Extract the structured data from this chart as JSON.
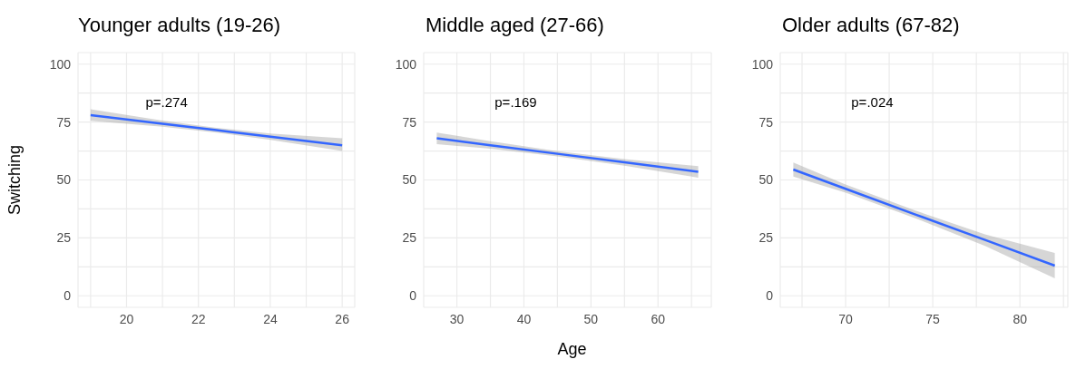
{
  "chart_data": [
    {
      "type": "line",
      "title": "Younger adults (19-26)",
      "ylabel": "Switching",
      "annotations": [
        "p=.274"
      ],
      "grid": true,
      "marker": "none",
      "series": [
        {
          "color": "#3366ff",
          "x": [
            19,
            21,
            22.5,
            24,
            26
          ],
          "values": [
            78,
            74.3,
            71.5,
            68.7,
            65
          ],
          "lower": [
            75.5,
            73,
            70.5,
            67.3,
            62.5
          ],
          "upper": [
            80.5,
            75.6,
            72.5,
            70.1,
            68
          ]
        }
      ],
      "xlim": [
        18.65,
        26.35
      ],
      "xticks": [
        {
          "value": 19,
          "label": null
        },
        20,
        {
          "value": 21,
          "label": null
        },
        22,
        {
          "value": 23,
          "label": null
        },
        24,
        {
          "value": 25,
          "label": null
        },
        26
      ],
      "ylim": [
        -5,
        105
      ],
      "yticks": [
        0,
        {
          "value": 12.5,
          "label": null
        },
        25,
        {
          "value": 37.5,
          "label": null
        },
        50,
        {
          "value": 62.5,
          "label": null
        },
        75,
        {
          "value": 87.5,
          "label": null
        },
        100
      ]
    },
    {
      "type": "line",
      "title": "Middle aged (27-66)",
      "xlabel": "Age",
      "annotations": [
        "p=.169"
      ],
      "grid": true,
      "marker": "none",
      "series": [
        {
          "color": "#3366ff",
          "x": [
            27,
            35,
            45,
            55,
            66
          ],
          "values": [
            68,
            65,
            61.3,
            57.6,
            53.5
          ],
          "lower": [
            65.5,
            63.5,
            60.2,
            56.2,
            51
          ],
          "upper": [
            70.5,
            66.7,
            62.4,
            59,
            56
          ]
        }
      ],
      "xlim": [
        25.05,
        67.95
      ],
      "xticks": [
        30,
        {
          "value": 35,
          "label": null
        },
        40,
        {
          "value": 45,
          "label": null
        },
        50,
        {
          "value": 55,
          "label": null
        },
        60,
        {
          "value": 65,
          "label": null
        }
      ],
      "ylim": [
        -5,
        105
      ],
      "yticks": [
        0,
        {
          "value": 12.5,
          "label": null
        },
        25,
        {
          "value": 37.5,
          "label": null
        },
        50,
        {
          "value": 62.5,
          "label": null
        },
        75,
        {
          "value": 87.5,
          "label": null
        },
        100
      ]
    },
    {
      "type": "line",
      "title": "Older adults (67-82)",
      "annotations": [
        "p=.024"
      ],
      "grid": true,
      "marker": "none",
      "series": [
        {
          "color": "#3366ff",
          "x": [
            67,
            70,
            74,
            78,
            82
          ],
          "values": [
            54.5,
            46.2,
            35.1,
            24.1,
            13
          ],
          "lower": [
            51.5,
            44.5,
            33.5,
            21.5,
            7.5
          ],
          "upper": [
            57.5,
            48,
            36.8,
            26.5,
            18.5
          ]
        }
      ],
      "xlim": [
        66.25,
        82.75
      ],
      "xticks": [
        {
          "value": 67.5,
          "label": null
        },
        70,
        {
          "value": 72.5,
          "label": null
        },
        75,
        {
          "value": 77.5,
          "label": null
        },
        80,
        {
          "value": 82.5,
          "label": null
        }
      ],
      "ylim": [
        -5,
        105
      ],
      "yticks": [
        0,
        {
          "value": 12.5,
          "label": null
        },
        25,
        {
          "value": 37.5,
          "label": null
        },
        50,
        {
          "value": 62.5,
          "label": null
        },
        75,
        {
          "value": 87.5,
          "label": null
        },
        100
      ]
    }
  ]
}
